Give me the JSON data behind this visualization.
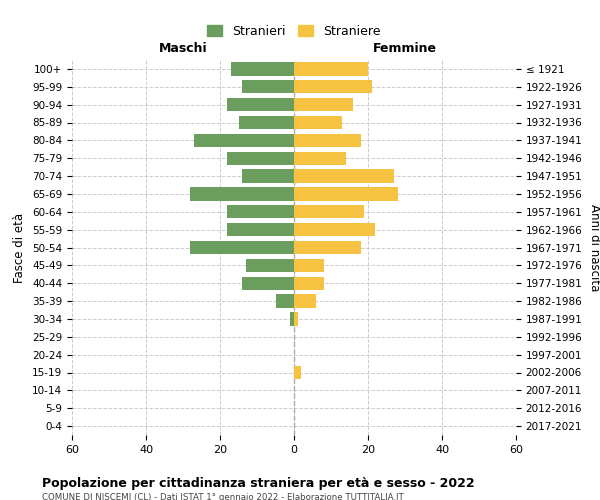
{
  "age_groups": [
    "0-4",
    "5-9",
    "10-14",
    "15-19",
    "20-24",
    "25-29",
    "30-34",
    "35-39",
    "40-44",
    "45-49",
    "50-54",
    "55-59",
    "60-64",
    "65-69",
    "70-74",
    "75-79",
    "80-84",
    "85-89",
    "90-94",
    "95-99",
    "100+"
  ],
  "birth_years": [
    "2017-2021",
    "2012-2016",
    "2007-2011",
    "2002-2006",
    "1997-2001",
    "1992-1996",
    "1987-1991",
    "1982-1986",
    "1977-1981",
    "1972-1976",
    "1967-1971",
    "1962-1966",
    "1957-1961",
    "1952-1956",
    "1947-1951",
    "1942-1946",
    "1937-1941",
    "1932-1936",
    "1927-1931",
    "1922-1926",
    "≤ 1921"
  ],
  "maschi": [
    17,
    14,
    18,
    15,
    27,
    18,
    14,
    28,
    18,
    18,
    28,
    13,
    14,
    5,
    1,
    0,
    0,
    0,
    0,
    0,
    0
  ],
  "femmine": [
    20,
    21,
    16,
    13,
    18,
    14,
    27,
    28,
    19,
    22,
    18,
    8,
    8,
    6,
    1,
    0,
    0,
    2,
    0,
    0,
    0
  ],
  "color_maschi": "#6b9e5e",
  "color_femmine": "#f5c242",
  "color_center_line": "#aaaaaa",
  "title": "Popolazione per cittadinanza straniera per età e sesso - 2022",
  "subtitle": "COMUNE DI NISCEMI (CL) - Dati ISTAT 1° gennaio 2022 - Elaborazione TUTTITALIA.IT",
  "xlabel_left": "Maschi",
  "xlabel_right": "Femmine",
  "ylabel_left": "Fasce di età",
  "ylabel_right": "Anni di nascita",
  "legend_maschi": "Stranieri",
  "legend_femmine": "Straniere",
  "xlim": 60,
  "background_color": "#ffffff",
  "grid_color": "#cccccc"
}
